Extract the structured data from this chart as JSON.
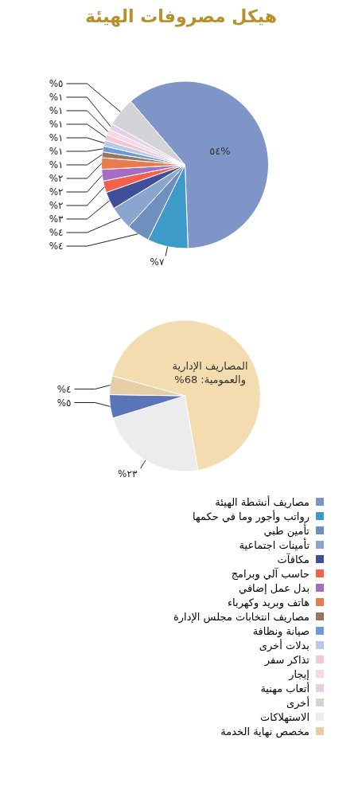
{
  "chart_data": [
    {
      "type": "pie",
      "title": "هيكل مصروفات الهيئة",
      "categories": [
        "مصاريف أنشطة الهيئة",
        "رواتب وأجور وما في حكمها",
        "تأمين طبي",
        "تأمينات اجتماعية",
        "مكافآت",
        "حاسب آلي وبرامج",
        "بدل عمل إضافي",
        "هاتف وبريد وكهرباء",
        "مصاريف انتخابات مجلس الإدارة",
        "صيانة ونظافة",
        "بدلات أخرى",
        "تذاكر سفر",
        "إيجار",
        "أتعاب مهنية",
        "أخرى"
      ],
      "values": [
        54,
        7,
        4,
        4,
        3,
        2,
        2,
        2,
        1,
        1,
        1,
        1,
        1,
        1,
        5
      ],
      "colors": [
        "#7f95c8",
        "#3e9ac6",
        "#6f8fbf",
        "#8aa6cf",
        "#3f4f9a",
        "#f2624a",
        "#a56cc1",
        "#e87c4f",
        "#9a7560",
        "#6a9bd8",
        "#b9c9ea",
        "#f4c6d6",
        "#f7d7e4",
        "#e2d0e8",
        "#d3d3d8"
      ],
      "value_labels": [
        "%٥٤",
        "%٧",
        "%٤",
        "%٤",
        "%٣",
        "%٢",
        "%٢",
        "%٢",
        "%١",
        "%١",
        "%١",
        "%١",
        "%١",
        "%١",
        "%٥"
      ],
      "legend": "bottom"
    },
    {
      "type": "pie",
      "categories": [
        null,
        "الاستهلاكات",
        null,
        "مخصص نهاية الخدمة"
      ],
      "values": [
        68,
        23,
        5,
        4
      ],
      "colors": [
        "#f3dcb0",
        "#ececec",
        "#5a74b8",
        "#e6cfa8"
      ],
      "value_labels": [
        "المصاريف الإدارية والعمومية: 68%",
        "%٢٣",
        "%٥",
        "%٤"
      ],
      "legend": "bottom"
    }
  ]
}
